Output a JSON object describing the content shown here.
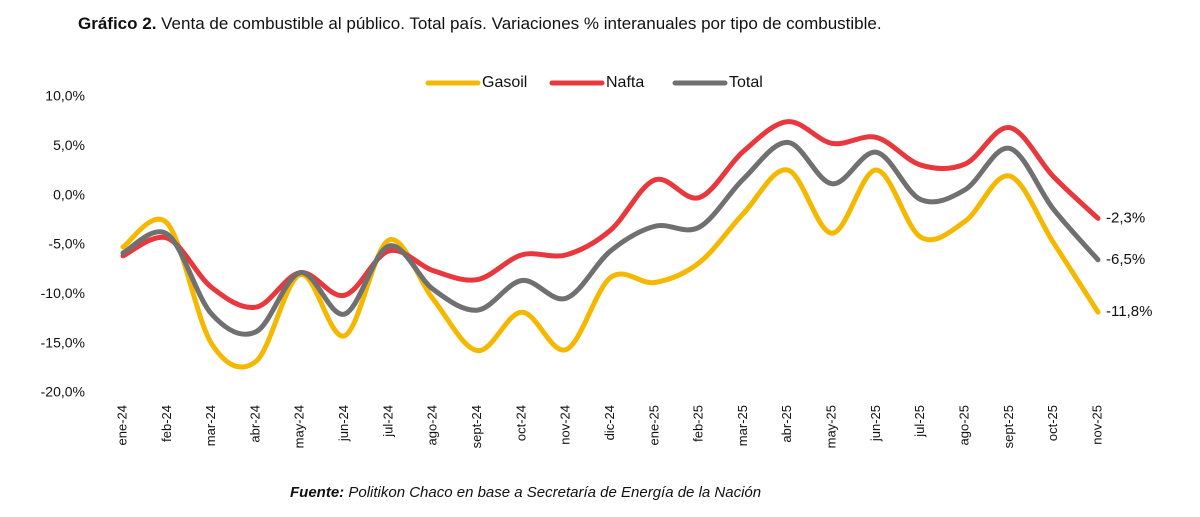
{
  "chart_data": {
    "type": "line",
    "title_label": "Gráfico 2.",
    "title": "Venta de combustible al público. Total país. Variaciones % interanuales por tipo de combustible.",
    "source_label": "Fuente:",
    "source": "Politikon Chaco en base a Secretaría de Energía de la Nación",
    "categories": [
      "ene-24",
      "feb-24",
      "mar-24",
      "abr-24",
      "may-24",
      "jun-24",
      "jul-24",
      "ago-24",
      "sept-24",
      "oct-24",
      "nov-24",
      "dic-24",
      "ene-25",
      "feb-25",
      "mar-25",
      "abr-25",
      "may-25",
      "jun-25",
      "jul-25",
      "ago-25",
      "sept-25",
      "oct-25",
      "nov-25"
    ],
    "series": [
      {
        "name": "Gasoil",
        "color": "#f5b800",
        "values": [
          -5.2,
          -2.8,
          -15.0,
          -16.8,
          -8.0,
          -14.2,
          -4.5,
          -10.5,
          -15.7,
          -11.8,
          -15.6,
          -8.3,
          -8.8,
          -6.8,
          -1.8,
          2.6,
          -3.8,
          2.6,
          -4.2,
          -2.6,
          2.0,
          -4.8,
          -11.8
        ],
        "value_labels": [
          null,
          null,
          null,
          null,
          null,
          null,
          null,
          null,
          null,
          null,
          null,
          null,
          null,
          null,
          null,
          null,
          null,
          null,
          null,
          null,
          null,
          null,
          "-11,8%"
        ]
      },
      {
        "name": "Nafta",
        "color": "#e8383d",
        "values": [
          -6.1,
          -4.3,
          -9.3,
          -11.3,
          -7.8,
          -10.1,
          -5.6,
          -7.6,
          -8.5,
          -6.0,
          -6.0,
          -3.5,
          1.6,
          -0.2,
          4.5,
          7.5,
          5.3,
          5.9,
          3.1,
          3.2,
          6.9,
          1.9,
          -2.3
        ],
        "value_labels": [
          null,
          null,
          null,
          null,
          null,
          null,
          null,
          null,
          null,
          null,
          null,
          null,
          null,
          null,
          null,
          null,
          null,
          null,
          null,
          null,
          null,
          null,
          "-2,3%"
        ]
      },
      {
        "name": "Total",
        "color": "#707070",
        "values": [
          -5.8,
          -3.9,
          -12.0,
          -13.8,
          -7.8,
          -12.0,
          -5.1,
          -9.5,
          -11.6,
          -8.6,
          -10.4,
          -5.6,
          -3.1,
          -3.2,
          1.7,
          5.4,
          1.2,
          4.4,
          -0.4,
          0.6,
          4.8,
          -1.4,
          -6.5
        ],
        "value_labels": [
          null,
          null,
          null,
          null,
          null,
          null,
          null,
          null,
          null,
          null,
          null,
          null,
          null,
          null,
          null,
          null,
          null,
          null,
          null,
          null,
          null,
          null,
          "-6,5%"
        ]
      }
    ],
    "ylim": [
      -20,
      10
    ],
    "yticks": [
      {
        "value": -20,
        "label": "-20,0%"
      },
      {
        "value": -15,
        "label": "-15,0%"
      },
      {
        "value": -10,
        "label": "-10,0%"
      },
      {
        "value": -5,
        "label": "-5,0%"
      },
      {
        "value": 0,
        "label": "0,0%"
      },
      {
        "value": 5,
        "label": "5,0%"
      },
      {
        "value": 10,
        "label": "10,0%"
      }
    ],
    "grid": false,
    "legend": "top"
  }
}
